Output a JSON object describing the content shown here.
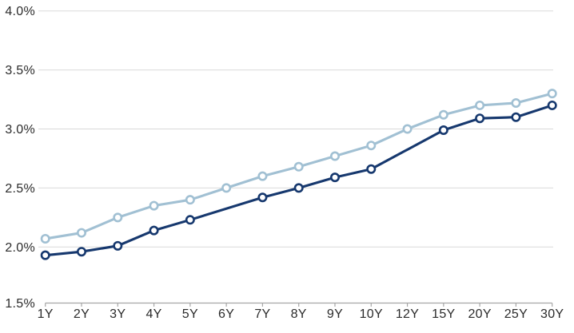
{
  "chart_data": {
    "type": "line",
    "title": "",
    "xlabel": "",
    "ylabel": "",
    "categories": [
      "1Y",
      "2Y",
      "3Y",
      "4Y",
      "5Y",
      "6Y",
      "7Y",
      "8Y",
      "9Y",
      "10Y",
      "12Y",
      "15Y",
      "20Y",
      "25Y",
      "30Y"
    ],
    "series": [
      {
        "id": "light-blue-upper-curve",
        "color": "#a1c0d3",
        "marker": "open-circle",
        "values": [
          2.07,
          2.12,
          2.25,
          2.35,
          2.4,
          2.5,
          2.6,
          2.68,
          2.77,
          2.86,
          3.0,
          3.12,
          3.2,
          3.22,
          3.3
        ]
      },
      {
        "id": "dark-navy-lower-curve",
        "color": "#16386e",
        "marker": "open-circle",
        "values": [
          1.93,
          1.96,
          2.01,
          2.14,
          2.23,
          null,
          2.42,
          2.5,
          2.59,
          2.66,
          null,
          2.99,
          3.09,
          3.1,
          3.2
        ]
      }
    ],
    "ylim": [
      1.5,
      4.0
    ],
    "yticks": [
      1.5,
      2.0,
      2.5,
      3.0,
      3.5,
      4.0
    ],
    "ytick_labels": [
      "1.5%",
      "2.0%",
      "2.5%",
      "3.0%",
      "3.5%",
      "4.0%"
    ],
    "grid": true,
    "legend": "none",
    "colors": {
      "background": "#ffffff",
      "text": "#2b2b2b",
      "gridline": "#d9d9d9",
      "axis_line": "#a6a6a6",
      "marker_fill": "#ffffff"
    }
  }
}
